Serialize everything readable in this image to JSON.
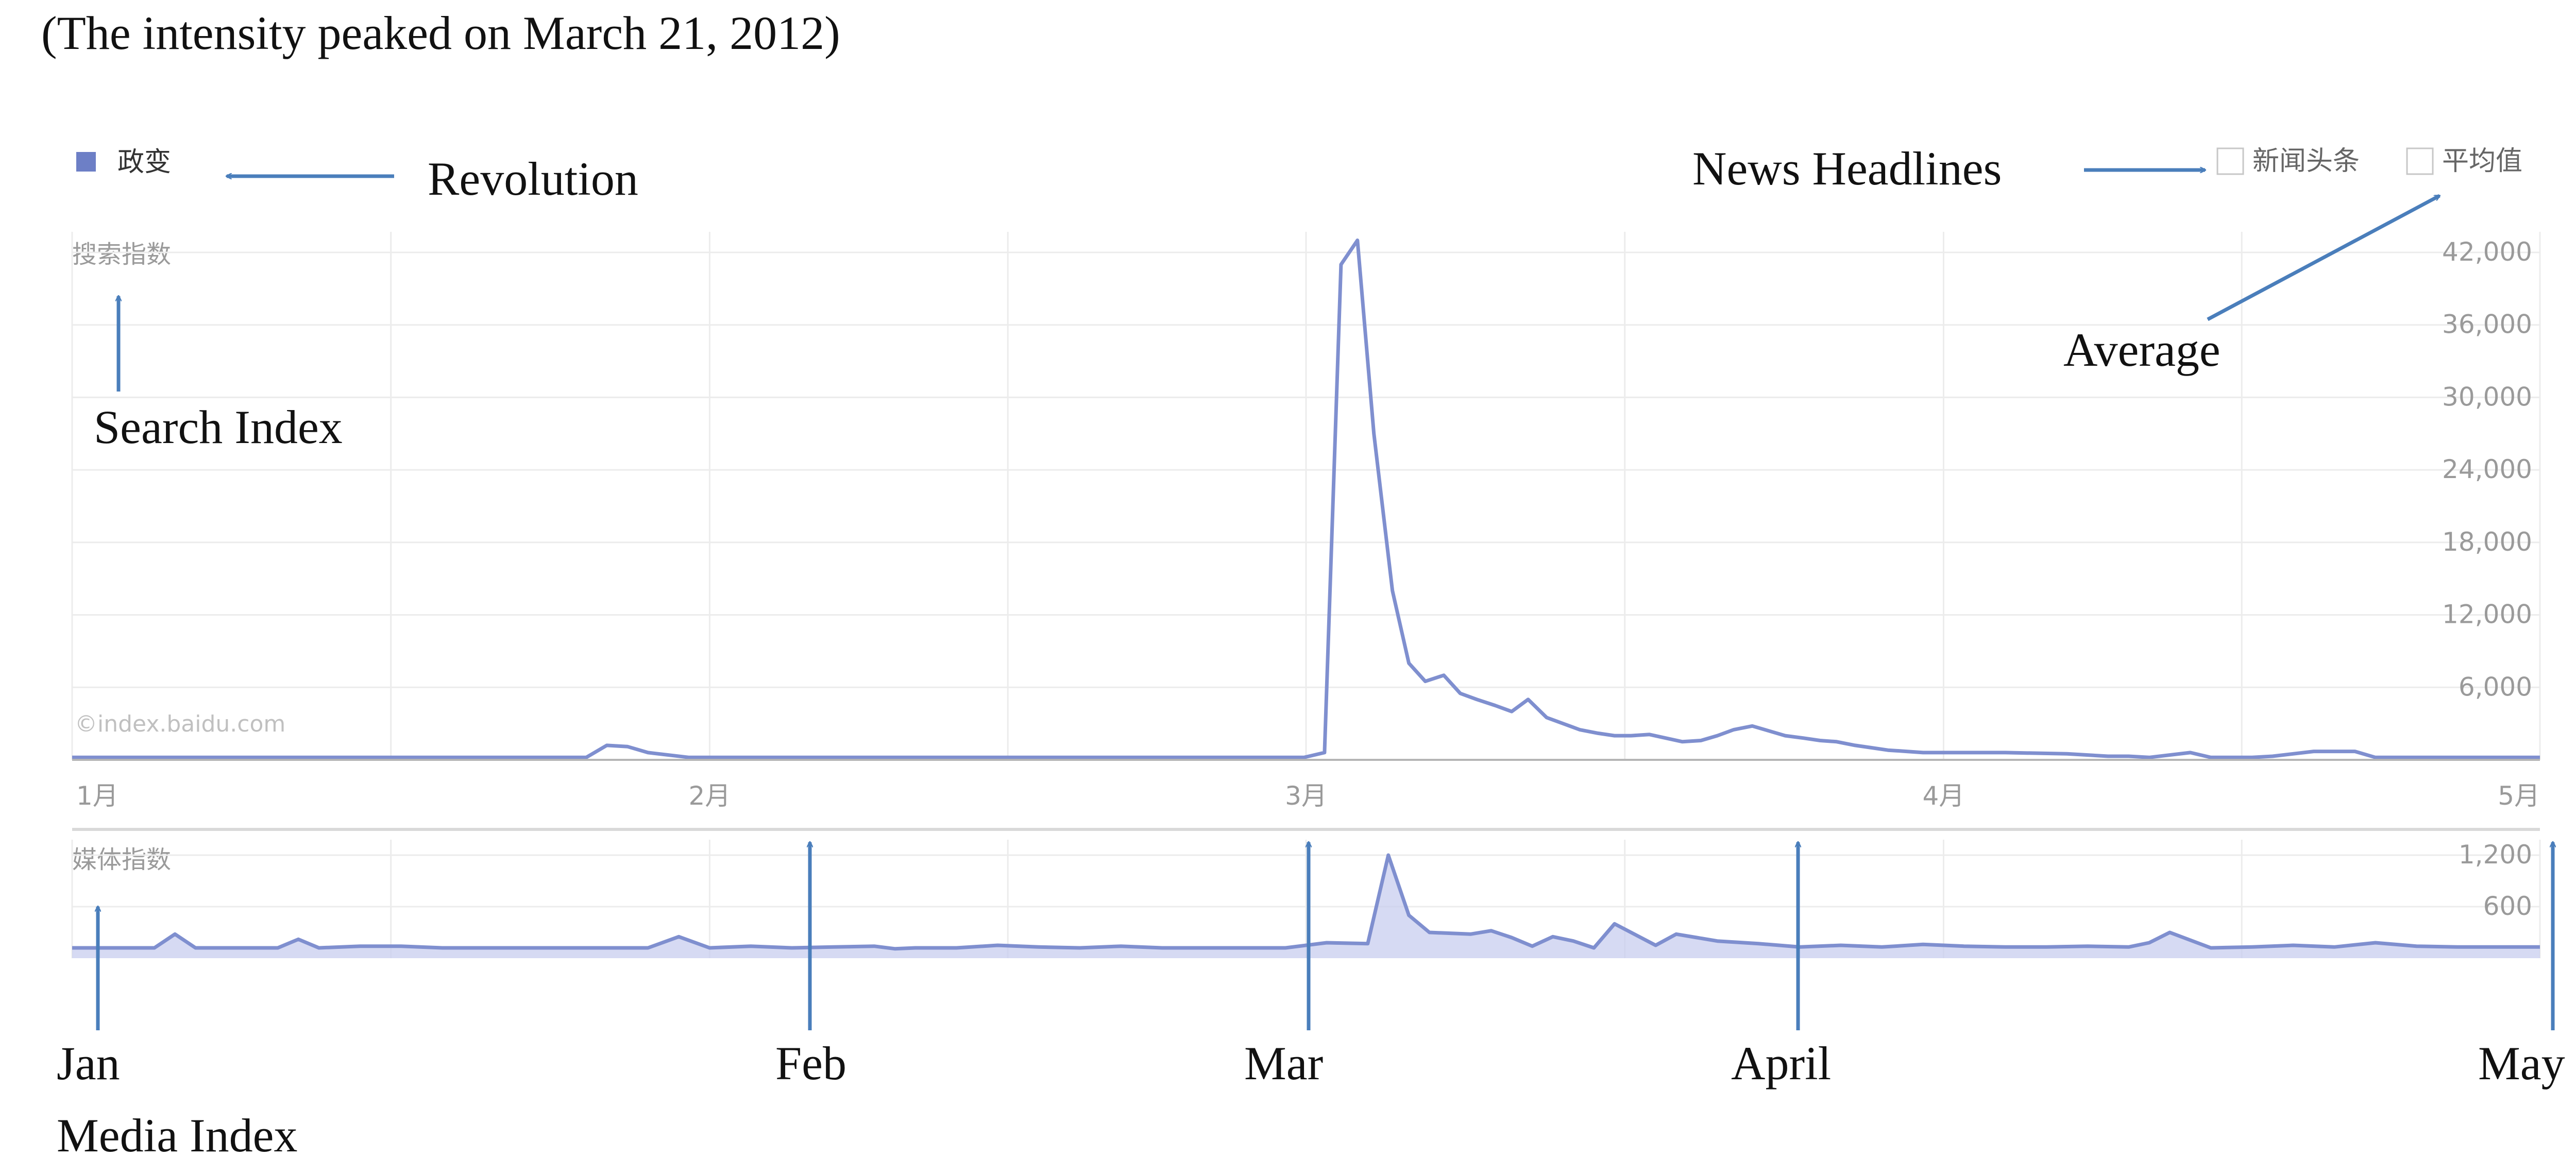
{
  "caption": "(The intensity peaked on March 21, 2012)",
  "legend": {
    "series_label": "政变",
    "news_headlines_label": "新闻头条",
    "average_label": "平均值"
  },
  "annotations": {
    "revolution": "Revolution",
    "news_headlines": "News Headlines",
    "average": "Average",
    "search_index": "Search Index",
    "jan": "Jan",
    "feb": "Feb",
    "mar": "Mar",
    "april": "April",
    "may": "May",
    "media_index": "Media Index"
  },
  "watermark": "©index.baidu.com",
  "colors": {
    "line": "#7f8fcf",
    "fill": "#c8cdef",
    "legend_square": "#6d7fc6",
    "annotation_arrow": "#4a7ebb",
    "grid": "#ececec",
    "axis_text": "#9a9a9a"
  },
  "chart_data": [
    {
      "type": "line",
      "panel": "search",
      "ylabel": "搜索指数",
      "yticks": [
        6000,
        12000,
        18000,
        24000,
        30000,
        36000,
        42000
      ],
      "ytick_labels": [
        "6,000",
        "12,000",
        "18,000",
        "24,000",
        "30,000",
        "36,000",
        "42,000"
      ],
      "ylim": [
        0,
        42000
      ],
      "xlim": [
        0,
        120
      ],
      "xticks": [
        0,
        31,
        60,
        91,
        120
      ],
      "xtick_labels": [
        "1月",
        "2月",
        "3月",
        "4月",
        "5月"
      ],
      "grid": true,
      "series": [
        {
          "x": [
            0,
            10,
            20,
            25,
            26,
            27,
            28,
            30,
            40,
            50,
            55,
            56,
            57,
            58,
            59,
            59.9,
            60.9,
            61.7,
            62.5,
            63.3,
            64.2,
            65,
            65.8,
            66.7,
            67.5,
            68.3,
            69.2,
            70,
            70.8,
            71.7,
            72.5,
            73.3,
            74.2,
            75,
            75.8,
            76.7,
            77.5,
            78.3,
            79.2,
            80,
            80.8,
            81.7,
            82.5,
            83.3,
            84.2,
            85,
            85.8,
            86.7,
            87.5,
            88.3,
            89.2,
            90,
            91,
            94,
            97,
            99,
            100,
            101,
            103,
            104,
            105,
            106,
            107,
            109,
            110,
            111,
            112,
            114,
            116,
            118,
            120
          ],
          "y": [
            200,
            200,
            200,
            200,
            1200,
            1100,
            600,
            200,
            200,
            200,
            200,
            200,
            200,
            200,
            200,
            200,
            600,
            41000,
            43000,
            27000,
            14000,
            8000,
            6500,
            7000,
            5500,
            5000,
            4500,
            4000,
            5000,
            3500,
            3000,
            2500,
            2200,
            2000,
            2000,
            2100,
            1800,
            1500,
            1600,
            2000,
            2500,
            2800,
            2400,
            2000,
            1800,
            1600,
            1500,
            1200,
            1000,
            800,
            700,
            600,
            600,
            600,
            500,
            300,
            300,
            200,
            600,
            200,
            200,
            200,
            300,
            700,
            700,
            700,
            200,
            200,
            200,
            200,
            200
          ]
        }
      ]
    },
    {
      "type": "area",
      "panel": "media",
      "ylabel": "媒体指数",
      "yticks": [
        600,
        1200
      ],
      "ytick_labels": [
        "600",
        "1,200"
      ],
      "ylim": [
        0,
        1200
      ],
      "xlim": [
        0,
        120
      ],
      "grid": true,
      "series": [
        {
          "x": [
            0,
            2,
            4,
            5,
            6,
            8,
            10,
            11,
            12,
            14,
            16,
            18,
            20,
            22,
            24,
            26,
            28,
            29.5,
            31,
            33,
            35,
            37,
            39,
            40,
            41,
            43,
            45,
            47,
            49,
            51,
            53,
            55,
            57,
            59,
            61,
            63,
            64,
            65,
            66,
            68,
            69,
            70,
            71,
            72,
            73,
            74,
            75,
            77,
            78,
            79,
            80,
            82,
            84,
            86,
            88,
            90,
            92,
            94,
            96,
            98,
            100,
            101,
            102,
            104,
            106,
            108,
            110,
            112,
            114,
            116,
            118,
            120
          ],
          "y": [
            120,
            120,
            120,
            280,
            120,
            120,
            120,
            220,
            120,
            140,
            140,
            120,
            120,
            120,
            120,
            120,
            120,
            250,
            120,
            140,
            120,
            130,
            140,
            110,
            120,
            120,
            150,
            130,
            120,
            140,
            120,
            120,
            120,
            120,
            180,
            170,
            1200,
            500,
            300,
            280,
            320,
            240,
            140,
            250,
            200,
            120,
            400,
            150,
            280,
            240,
            200,
            170,
            130,
            150,
            130,
            160,
            140,
            130,
            130,
            140,
            130,
            180,
            300,
            120,
            130,
            150,
            130,
            180,
            140,
            130,
            130,
            130
          ]
        }
      ]
    }
  ]
}
